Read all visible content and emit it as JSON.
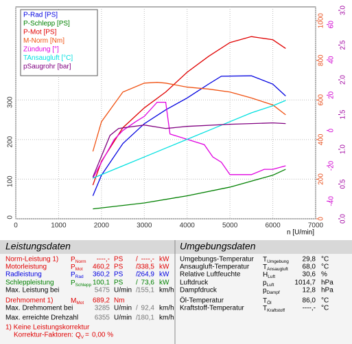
{
  "chart_data": {
    "type": "line",
    "x_label": "n [U/min]",
    "xlim": [
      0,
      7000
    ],
    "xticks": [
      0,
      1000,
      2000,
      3000,
      4000,
      5000,
      6000,
      7000
    ],
    "ylim": [
      0,
      535
    ],
    "yticks": [
      0,
      100,
      200,
      300
    ],
    "y2lim": [
      0,
      1070
    ],
    "y2ticks": [
      0,
      200,
      400,
      600,
      800,
      1000
    ],
    "y2color": "#e8501e",
    "y3lim": [
      -50,
      70
    ],
    "y3ticks": [
      -40,
      -20,
      0,
      20,
      40,
      60
    ],
    "y3color": "#d000d0",
    "y4lim": [
      0,
      3.05
    ],
    "y4ticks": [
      {
        "value": 0,
        "label": "0.0"
      },
      0.5,
      {
        "value": 1,
        "label": "1.0"
      },
      1.5,
      {
        "value": 2,
        "label": "2.0"
      },
      2.5,
      {
        "value": 3,
        "label": "3.0"
      }
    ],
    "y4color": "#a000a0",
    "grid": true,
    "legend": "upper left",
    "series": [
      {
        "name": "P-Rad [PS]",
        "color": "#0000e0",
        "axis": "y",
        "x": [
          1800,
          2000,
          2500,
          3000,
          3500,
          4000,
          4500,
          4800,
          5500,
          6000,
          6300
        ],
        "values": [
          58,
          110,
          190,
          240,
          275,
          305,
          340,
          360,
          361,
          340,
          310
        ]
      },
      {
        "name": "P-Schlepp [PS]",
        "color": "#008000",
        "axis": "y",
        "x": [
          1800,
          3000,
          4000,
          5000,
          6000,
          6300
        ],
        "values": [
          25,
          40,
          58,
          80,
          110,
          125
        ]
      },
      {
        "name": "P-Mot [PS]",
        "color": "#e00000",
        "axis": "y",
        "x": [
          1800,
          2000,
          2500,
          3000,
          3500,
          4000,
          4500,
          5000,
          5500,
          6000,
          6300
        ],
        "values": [
          85,
          145,
          230,
          280,
          320,
          370,
          410,
          445,
          460,
          452,
          430
        ]
      },
      {
        "name": "M-Norm [Nm]",
        "color": "#f05010",
        "axis": "y2",
        "x": [
          1800,
          2000,
          2500,
          3000,
          3300,
          3500,
          4000,
          4500,
          5000,
          5500,
          6000,
          6300
        ],
        "values": [
          340,
          490,
          640,
          685,
          689,
          685,
          665,
          655,
          640,
          610,
          575,
          525
        ]
      },
      {
        "name": "Zündung [°]",
        "color": "#e000e0",
        "axis": "y3",
        "x": [
          1800,
          2000,
          2300,
          2500,
          2800,
          3000,
          3300,
          3500,
          3600,
          4000,
          4400,
          4600,
          4800,
          5000,
          5500,
          5800,
          6000,
          6300
        ],
        "values": [
          -27,
          -18,
          -5,
          0,
          5,
          8,
          16,
          16,
          -2,
          -5,
          -8,
          -15,
          -18,
          -25,
          -25,
          -22,
          -22,
          -20
        ]
      },
      {
        "name": "TAnsaugluft [°C]",
        "color": "#00e0e0",
        "axis": "y3",
        "x": [
          1800,
          2500,
          3000,
          3500,
          4000,
          4500,
          5000,
          5500,
          6000,
          6300
        ],
        "values": [
          -27,
          -20,
          -15,
          -10,
          -5,
          0,
          5,
          10,
          14,
          17
        ]
      },
      {
        "name": "pSaugrohr [bar]",
        "color": "#800080",
        "axis": "y4",
        "x": [
          1800,
          2000,
          2200,
          2400,
          3000,
          3500,
          4000,
          5000,
          5500,
          6000,
          6300
        ],
        "values": [
          0.6,
          0.9,
          1.2,
          1.3,
          1.35,
          1.3,
          1.33,
          1.36,
          1.37,
          1.38,
          1.37
        ]
      }
    ]
  },
  "left_panel": {
    "title": "Leistungsdaten",
    "rows": [
      {
        "label": "Norm-Leistung 1)",
        "color": "#e00000",
        "symbol": {
          "base": "P",
          "sub": "Norm"
        },
        "values": [
          "----,-",
          "----,-"
        ],
        "units": [
          "PS",
          "kW"
        ],
        "separator": "/"
      },
      {
        "label": "Motorleistung",
        "color": "#e00000",
        "symbol": {
          "base": "P",
          "sub": "Mot"
        },
        "values": [
          "460,2",
          "338,5"
        ],
        "units": [
          "PS",
          "kW"
        ],
        "separator": "/"
      },
      {
        "label": "Radleistung",
        "color": "#0000e0",
        "symbol": {
          "base": "P",
          "sub": "Rad"
        },
        "values": [
          "360,2",
          "264,9"
        ],
        "units": [
          "PS",
          "kW"
        ],
        "separator": "/"
      },
      {
        "label": "Schleppleistung",
        "color": "#008000",
        "symbol": {
          "base": "P",
          "sub": "Schlepp"
        },
        "values": [
          "100,1",
          "73,6"
        ],
        "units": [
          "PS",
          "kW"
        ],
        "separator": "/"
      },
      {
        "label": "Max. Leistung bei",
        "color": "#000000",
        "values": [
          "5475",
          "155,1"
        ],
        "units": [
          "U/min",
          "km/h"
        ],
        "separator": "/"
      },
      {
        "label": "Drehmoment 1)",
        "color": "#e00000",
        "symbol": {
          "base": "M",
          "sub": "Mot"
        },
        "values": [
          "689,2"
        ],
        "units": [
          "Nm"
        ]
      },
      {
        "label": "Max. Drehmoment bei",
        "color": "#000000",
        "values": [
          "3285",
          "92,4"
        ],
        "units": [
          "U/min",
          "km/h"
        ],
        "separator": "/"
      },
      {
        "label": "Max. erreichte Drehzahl",
        "color": "#000000",
        "values": [
          "6355",
          "180,1"
        ],
        "units": [
          "U/min",
          "km/h"
        ],
        "separator": "/"
      }
    ],
    "footnote": "1) Keine Leistungskorrektur",
    "correction": {
      "label": "Korrektur-Faktoren:",
      "symbol": {
        "base": "Q",
        "sub": "V"
      },
      "equals": "=",
      "value": "0,00 %"
    }
  },
  "right_panel": {
    "title": "Umgebungsdaten",
    "rows": [
      {
        "label": "Umgebungs-Temperatur",
        "symbol": {
          "base": "T",
          "sub": "Umgebung"
        },
        "value": "29,8",
        "unit": "°C"
      },
      {
        "label": "Ansaugluft-Temperatur",
        "symbol": {
          "base": "T",
          "sub": "Ansaugluft"
        },
        "value": "68,0",
        "unit": "°C"
      },
      {
        "label": "Relative Luftfeuchte",
        "symbol": {
          "base": "H",
          "sub": "Luft"
        },
        "value": "30,6",
        "unit": "%"
      },
      {
        "label": "Luftdruck",
        "symbol": {
          "base": "p",
          "sub": "Luft"
        },
        "value": "1014,7",
        "unit": "hPa"
      },
      {
        "label": "Dampfdruck",
        "symbol": {
          "base": "p",
          "sub": "Dampf"
        },
        "value": "12,8",
        "unit": "hPa"
      },
      {
        "label": "Öl-Temperatur",
        "symbol": {
          "base": "T",
          "sub": "Öl"
        },
        "value": "86,0",
        "unit": "°C"
      },
      {
        "label": "Kraftstoff-Temperatur",
        "symbol": {
          "base": "T",
          "sub": "Kraftstoff"
        },
        "value": "----,-",
        "unit": "°C"
      }
    ]
  }
}
